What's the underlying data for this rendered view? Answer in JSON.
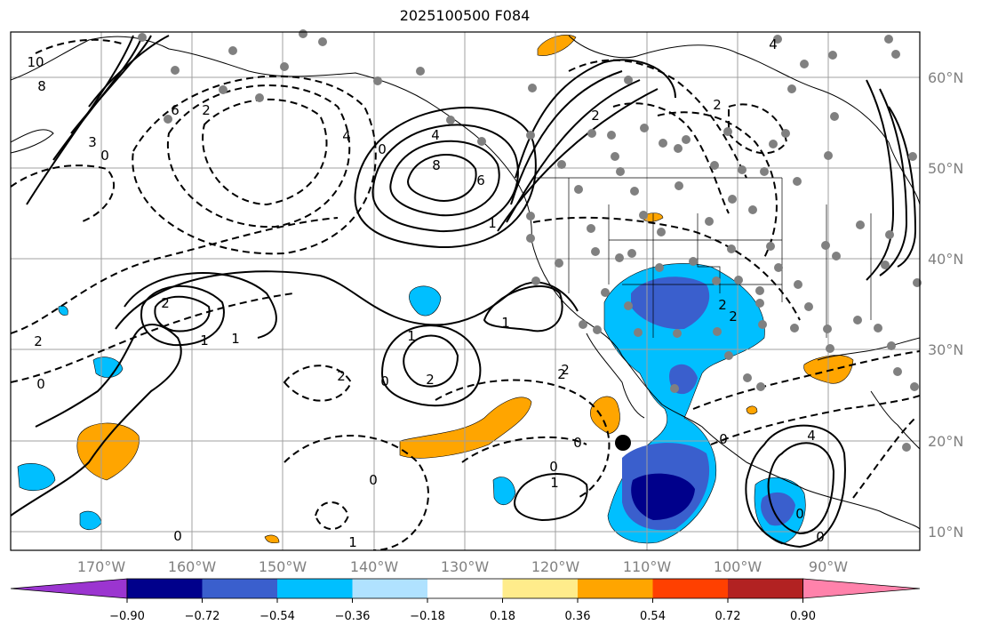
{
  "title": "2025100500 F084",
  "lon_labels": [
    "170°W",
    "160°W",
    "150°W",
    "140°W",
    "130°W",
    "120°W",
    "110°W",
    "100°W",
    "90°W"
  ],
  "lat_labels": [
    "60°N",
    "50°N",
    "40°N",
    "30°N",
    "20°N",
    "10°N"
  ],
  "colorbar": {
    "colors": [
      "#9b35d0",
      "#00008b",
      "#3a5fcd",
      "#00bfff",
      "#b0e2ff",
      "#ffffff",
      "#ffec8b",
      "#ffa500",
      "#ff4000",
      "#b22222",
      "#ff82ab"
    ],
    "labels": [
      "−0.90",
      "−0.72",
      "−0.54",
      "−0.36",
      "−0.18",
      "0.18",
      "0.36",
      "0.54",
      "0.72",
      "0.90"
    ]
  },
  "contour_labels": [
    {
      "text": "1"
    },
    {
      "text": "2"
    },
    {
      "text": "1"
    },
    {
      "text": "2"
    },
    {
      "text": "1"
    },
    {
      "text": "2"
    },
    {
      "text": "1"
    },
    {
      "text": "0"
    },
    {
      "text": "0"
    },
    {
      "text": "2"
    },
    {
      "text": "2"
    },
    {
      "text": "0"
    },
    {
      "text": "1"
    },
    {
      "text": "0"
    },
    {
      "text": "0"
    },
    {
      "text": "0"
    },
    {
      "text": "2"
    },
    {
      "text": "2"
    },
    {
      "text": "8"
    },
    {
      "text": "6"
    },
    {
      "text": "4"
    },
    {
      "text": "2"
    },
    {
      "text": "0"
    },
    {
      "text": "2"
    },
    {
      "text": "4"
    },
    {
      "text": "10"
    },
    {
      "text": "8"
    },
    {
      "text": "6"
    },
    {
      "text": "3"
    },
    {
      "text": "0"
    },
    {
      "text": "1"
    },
    {
      "text": "0"
    },
    {
      "text": "0"
    },
    {
      "text": "1"
    },
    {
      "text": "2"
    },
    {
      "text": "0"
    },
    {
      "text": "4"
    },
    {
      "text": "4"
    },
    {
      "text": "2"
    }
  ]
}
